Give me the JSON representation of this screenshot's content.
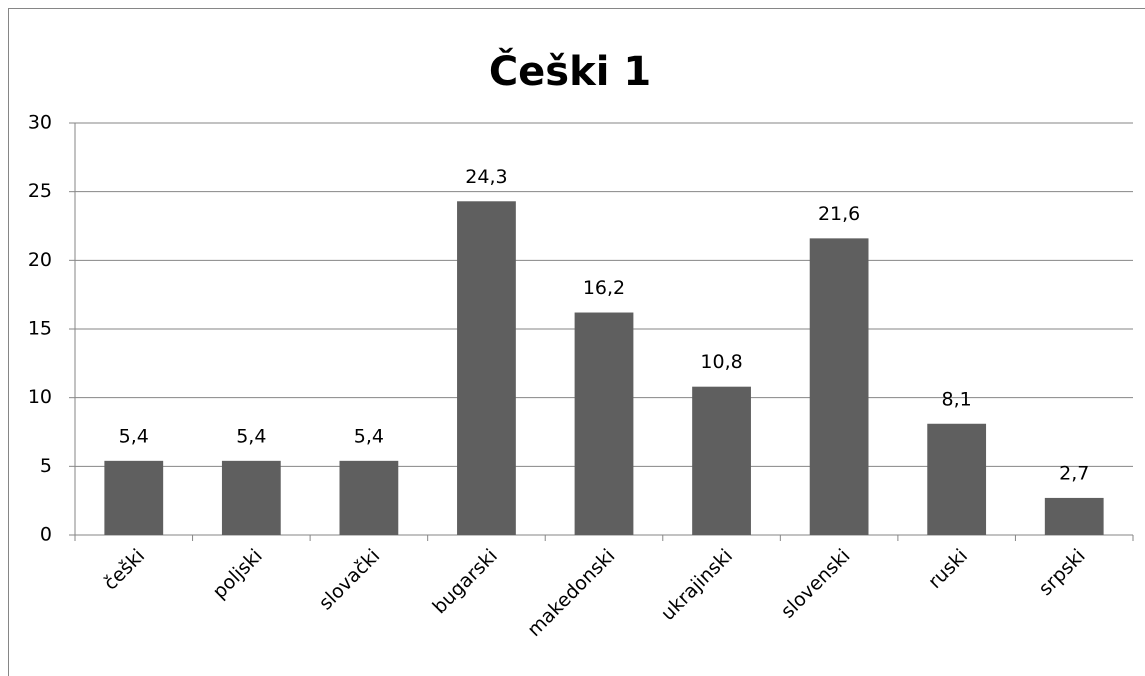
{
  "chart_data": {
    "type": "bar",
    "title": "Češki 1",
    "categories": [
      "češki",
      "poljski",
      "slovački",
      "bugarski",
      "makedonski",
      "ukrajinski",
      "slovenski",
      "ruski",
      "srpski"
    ],
    "values": [
      5.4,
      5.4,
      5.4,
      24.3,
      16.2,
      10.8,
      21.6,
      8.1,
      2.7
    ],
    "value_labels": [
      "5,4",
      "5,4",
      "5,4",
      "24,3",
      "16,2",
      "10,8",
      "21,6",
      "8,1",
      "2,7"
    ],
    "color": "#5f5f5f",
    "ylim": [
      0,
      30
    ],
    "yticks": [
      0,
      5,
      10,
      15,
      20,
      25,
      30
    ],
    "grid": true
  }
}
